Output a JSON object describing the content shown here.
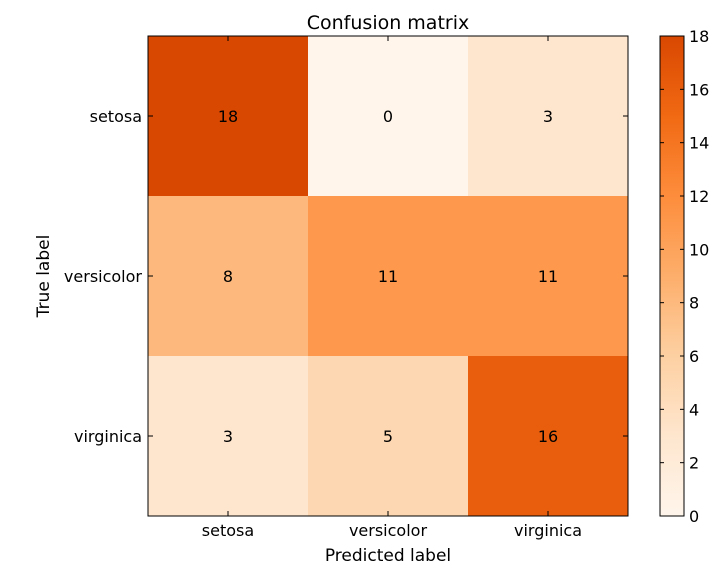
{
  "chart_data": {
    "type": "heatmap",
    "title": "Confusion matrix",
    "xlabel": "Predicted label",
    "ylabel": "True label",
    "x_categories": [
      "setosa",
      "versicolor",
      "virginica"
    ],
    "y_categories": [
      "setosa",
      "versicolor",
      "virginica"
    ],
    "values": [
      [
        18,
        0,
        3
      ],
      [
        8,
        11,
        11
      ],
      [
        3,
        5,
        16
      ]
    ],
    "colorbar": {
      "min": 0,
      "max": 18,
      "ticks": [
        0,
        2,
        4,
        6,
        8,
        10,
        12,
        14,
        16,
        18
      ]
    },
    "colormap": [
      "#fff5eb",
      "#fee6ce",
      "#fdd0a2",
      "#fdae6b",
      "#fd8d3c",
      "#f16913",
      "#d94801"
    ],
    "grid": false
  }
}
